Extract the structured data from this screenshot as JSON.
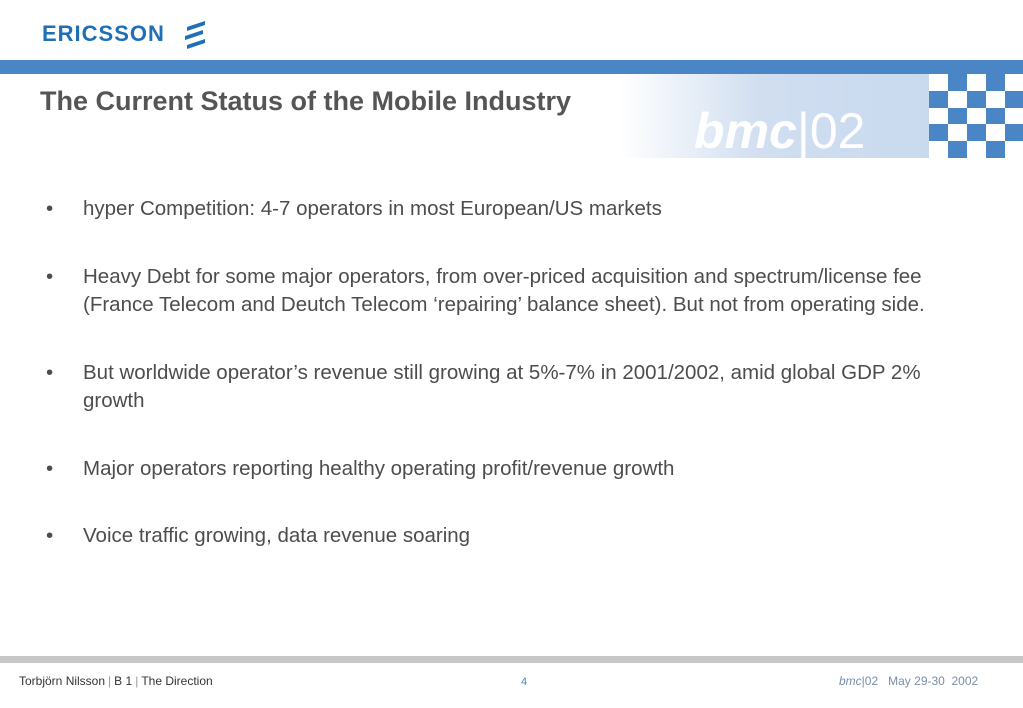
{
  "logo": {
    "text": "ERICSSON"
  },
  "banner": {
    "bmc_text": "bmc",
    "bar": "|",
    "number": "02"
  },
  "slide": {
    "title": "The Current Status of the Mobile Industry",
    "bullets": [
      "hyper Competition: 4-7 operators in most European/US markets",
      "Heavy Debt for some major operators,  from over-priced acquisition and spectrum/license fee (France Telecom and Deutch Telecom ‘repairing’ balance sheet). But not from operating side.",
      "But worldwide operator’s revenue still growing at 5%-7% in 2001/2002, amid global GDP 2% growth",
      "Major operators reporting healthy operating profit/revenue growth",
      "Voice traffic growing, data revenue soaring"
    ]
  },
  "footer": {
    "author": "Torbjörn Nilsson",
    "section": "B 1",
    "topic": "The Direction",
    "separator": "|",
    "page_number": "4",
    "event_bmc": "bmc",
    "event_rest": "|02   May 29-30  2002"
  },
  "colors": {
    "accent_blue": "#4a85c6",
    "logo_blue": "#1f6fb6",
    "title_gray": "#555555"
  }
}
